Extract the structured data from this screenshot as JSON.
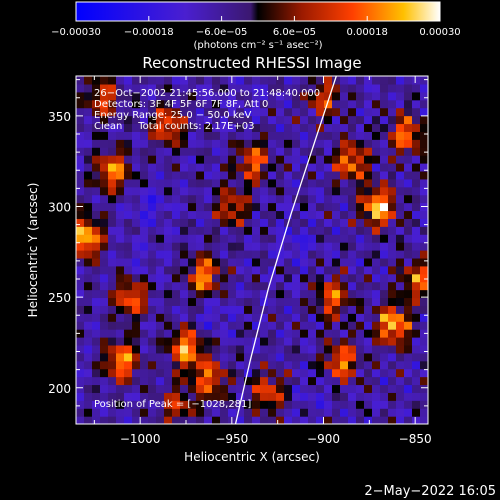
{
  "chart_data": {
    "type": "heatmap",
    "title": "Reconstructed RHESSI Image",
    "xlabel": "Heliocentric X (arcsec)",
    "ylabel": "Heliocentric Y (arcsec)",
    "xlim": [
      -1035,
      -843
    ],
    "ylim": [
      180,
      372
    ],
    "x_ticks": [
      {
        "value": -1000,
        "label": "−1000"
      },
      {
        "value": -950,
        "label": "−950"
      },
      {
        "value": -900,
        "label": "−900"
      },
      {
        "value": -850,
        "label": "−850"
      }
    ],
    "y_ticks": [
      {
        "value": 200,
        "label": "200"
      },
      {
        "value": 250,
        "label": "250"
      },
      {
        "value": 300,
        "label": "300"
      },
      {
        "value": 350,
        "label": "350"
      }
    ],
    "colorbar": {
      "range": [
        -0.0003,
        0.0003
      ],
      "tick_values": [
        -0.0003,
        -0.00018,
        -6e-05,
        6e-05,
        0.00018,
        0.0003
      ],
      "tick_labels": [
        "−0.00030",
        "−0.00018",
        "−6.0e−05",
        "6.0e−05",
        "0.00018",
        "0.00030"
      ],
      "unit_label": "(photons cm⁻² s⁻¹ asec⁻²)"
    },
    "annotations": [
      "26−Oct−2002 21:45:56.000 to 21:48:40.000",
      "Detectors: 3F 4F 5F 6F 7F 8F, Att 0",
      "Energy Range: 25.0 − 50.0 keV",
      "Clean     Total counts: 2.17E+03"
    ],
    "peak_label": "Position of Peak = [−1028,281]",
    "limb_curve": [
      [
        -948,
        180
      ],
      [
        -940,
        215
      ],
      [
        -930,
        255
      ],
      [
        -918,
        295
      ],
      [
        -905,
        335
      ],
      [
        -893,
        372
      ]
    ],
    "grid": false,
    "hotspots": [
      {
        "x": -1030,
        "y": 283,
        "v": 0.00026
      },
      {
        "x": -1015,
        "y": 320,
        "v": 0.0002
      },
      {
        "x": -1005,
        "y": 250,
        "v": 0.00017
      },
      {
        "x": -1010,
        "y": 215,
        "v": 0.00021
      },
      {
        "x": -985,
        "y": 345,
        "v": 0.00016
      },
      {
        "x": -975,
        "y": 222,
        "v": 0.00022
      },
      {
        "x": -965,
        "y": 262,
        "v": 0.0002
      },
      {
        "x": -962,
        "y": 205,
        "v": 0.00016
      },
      {
        "x": -950,
        "y": 300,
        "v": 0.00012
      },
      {
        "x": -938,
        "y": 325,
        "v": 0.00016
      },
      {
        "x": -930,
        "y": 198,
        "v": 0.00014
      },
      {
        "x": -895,
        "y": 250,
        "v": 0.00016
      },
      {
        "x": -890,
        "y": 215,
        "v": 0.00018
      },
      {
        "x": -885,
        "y": 325,
        "v": 0.00018
      },
      {
        "x": -870,
        "y": 300,
        "v": 0.00026
      },
      {
        "x": -862,
        "y": 235,
        "v": 0.00024
      },
      {
        "x": -855,
        "y": 340,
        "v": 0.00018
      },
      {
        "x": -848,
        "y": 260,
        "v": 0.00016
      },
      {
        "x": -900,
        "y": 360,
        "v": 0.00012
      },
      {
        "x": -1020,
        "y": 360,
        "v": 0.00013
      },
      {
        "x": -980,
        "y": 190,
        "v": 0.0001
      }
    ],
    "coldspots": [
      {
        "x": -995,
        "y": 300,
        "v": -0.00016
      },
      {
        "x": -960,
        "y": 240,
        "v": -0.00014
      },
      {
        "x": -915,
        "y": 280,
        "v": -0.00015
      },
      {
        "x": -905,
        "y": 195,
        "v": -0.00012
      },
      {
        "x": -1000,
        "y": 270,
        "v": -0.00012
      },
      {
        "x": -940,
        "y": 360,
        "v": -0.0001
      }
    ]
  },
  "footer": {
    "timestamp": "2−May−2022 16:05"
  }
}
